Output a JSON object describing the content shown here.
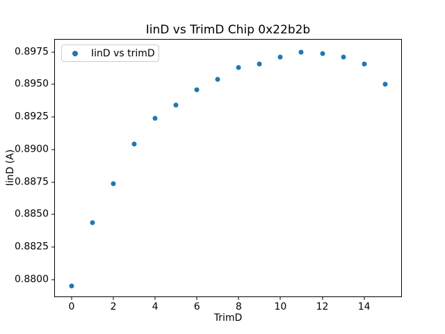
{
  "chart_data": {
    "type": "scatter",
    "title": "IinD vs TrimD Chip 0x22b2b",
    "xlabel": "TrimD",
    "ylabel": "IinD (A)",
    "legend": {
      "entries": [
        "IinD vs trimD"
      ],
      "position": "upper-left"
    },
    "marker_color": "#1f77b4",
    "grid": false,
    "x": [
      0,
      1,
      2,
      3,
      4,
      5,
      6,
      7,
      8,
      9,
      10,
      11,
      12,
      13,
      14,
      15
    ],
    "y": [
      0.8795,
      0.8844,
      0.8874,
      0.8904,
      0.8924,
      0.8934,
      0.8946,
      0.8954,
      0.8963,
      0.8966,
      0.8971,
      0.8975,
      0.8974,
      0.8971,
      0.8966,
      0.895
    ],
    "xlim": [
      -0.83,
      15.81
    ],
    "ylim": [
      0.87866,
      0.8985
    ],
    "xticks": {
      "values": [
        0,
        2,
        4,
        6,
        8,
        10,
        12,
        14
      ],
      "labels": [
        "0",
        "2",
        "4",
        "6",
        "8",
        "10",
        "12",
        "14"
      ]
    },
    "yticks": {
      "values": [
        0.88,
        0.8825,
        0.885,
        0.8875,
        0.89,
        0.8925,
        0.895,
        0.8975
      ],
      "labels": [
        "0.8800",
        "0.8825",
        "0.8850",
        "0.8875",
        "0.8900",
        "0.8925",
        "0.8950",
        "0.8975"
      ]
    }
  }
}
